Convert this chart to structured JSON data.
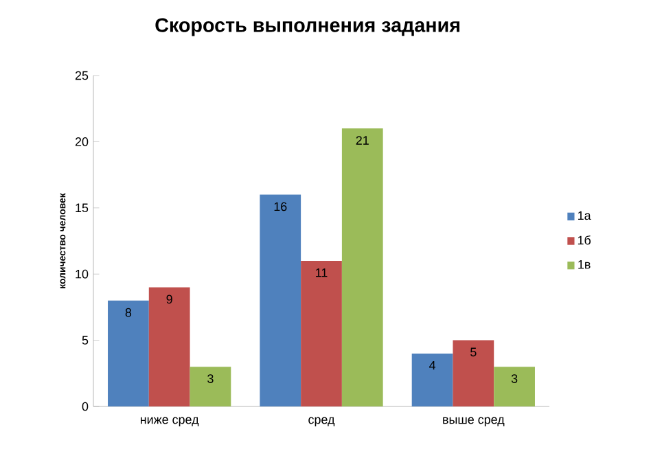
{
  "chart_data": {
    "type": "bar",
    "title": "Скорость выполнения задания",
    "ylabel": "количество человек",
    "categories": [
      "ниже сред",
      "сред",
      "выше сред"
    ],
    "series": [
      {
        "name": "1а",
        "color": "#4f81bd",
        "values": [
          8,
          16,
          4
        ]
      },
      {
        "name": "1б",
        "color": "#c0504d",
        "values": [
          9,
          11,
          5
        ]
      },
      {
        "name": "1в",
        "color": "#9bbb59",
        "values": [
          3,
          21,
          3
        ]
      }
    ],
    "ylim": [
      0,
      25
    ],
    "yticks": [
      0,
      5,
      10,
      15,
      20,
      25
    ],
    "data_labels": true,
    "legend": "right",
    "grid": false
  }
}
